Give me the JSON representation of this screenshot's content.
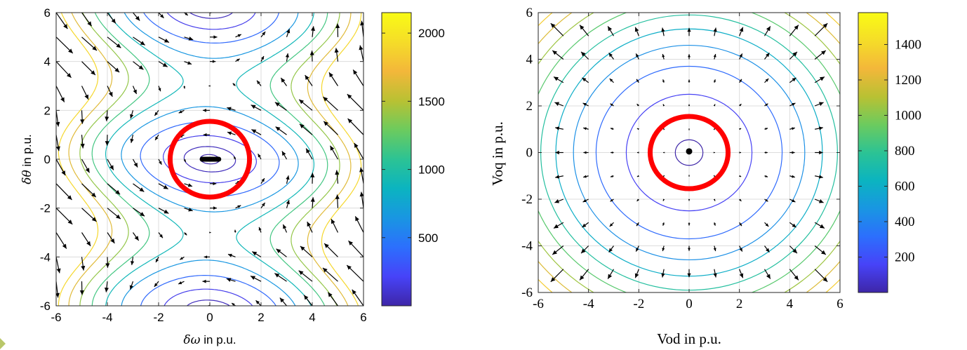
{
  "chart_data": [
    {
      "type": "contour",
      "xlabel": "δω in p.u.",
      "ylabel": "δθ in p.u.",
      "xlim": [
        -6,
        6
      ],
      "ylim": [
        -6,
        6
      ],
      "xticks": [
        "-6",
        "-4",
        "-2",
        "0",
        "2",
        "4",
        "6"
      ],
      "yticks": [
        "-6",
        "-4",
        "-2",
        "0",
        "2",
        "4",
        "6"
      ],
      "grid": true,
      "colorbar": {
        "ticks": [
          "500",
          "1000",
          "1500",
          "2000"
        ],
        "tick_values": [
          500,
          1000,
          1500,
          2000
        ],
        "range": [
          0,
          2150
        ]
      },
      "contour_levels": [
        8,
        55,
        180,
        400,
        650,
        900,
        1150,
        1400,
        1650,
        1900
      ],
      "colormap": [
        "#3e26a8",
        "#4743f8",
        "#2c6ffd",
        "#1996e2",
        "#0bb4c0",
        "#2cc394",
        "#6ccb5e",
        "#b9c133",
        "#f3b73a",
        "#f5dd28",
        "#f9fb15"
      ],
      "annotations": [
        {
          "type": "circle",
          "center": [
            0,
            0
          ],
          "radius": 1.55,
          "color": "#ff0000"
        },
        {
          "type": "segment",
          "from": [
            -0.3,
            0
          ],
          "to": [
            0.35,
            0
          ],
          "color": "#000000"
        }
      ]
    },
    {
      "type": "contour",
      "xlabel": "Vod in p.u.",
      "ylabel": "Voq in p.u.",
      "xlim": [
        -6,
        6
      ],
      "ylim": [
        -6,
        6
      ],
      "xticks": [
        "-6",
        "-4",
        "-2",
        "0",
        "2",
        "4",
        "6"
      ],
      "yticks": [
        "-6",
        "-4",
        "-2",
        "0",
        "2",
        "4",
        "6"
      ],
      "grid": true,
      "colorbar": {
        "ticks": [
          "200",
          "400",
          "600",
          "800",
          "1000",
          "1200",
          "1400"
        ],
        "tick_values": [
          200,
          400,
          600,
          800,
          1000,
          1200,
          1400
        ],
        "range": [
          0,
          1580
        ]
      },
      "contour_radii": [
        0.55,
        2.5,
        3.7,
        4.6,
        5.3,
        5.9,
        6.5,
        7.1,
        7.6,
        8.1,
        8.5
      ],
      "colormap": [
        "#3e26a8",
        "#4743f8",
        "#2c6ffd",
        "#1996e2",
        "#0bb4c0",
        "#2cc394",
        "#6ccb5e",
        "#b9c133",
        "#f3b73a",
        "#f5dd28",
        "#f9fb15"
      ],
      "annotations": [
        {
          "type": "circle",
          "center": [
            0,
            0
          ],
          "radius": 1.55,
          "color": "#ff0000"
        },
        {
          "type": "dot",
          "center": [
            0,
            0.05
          ],
          "color": "#000000"
        }
      ]
    }
  ]
}
